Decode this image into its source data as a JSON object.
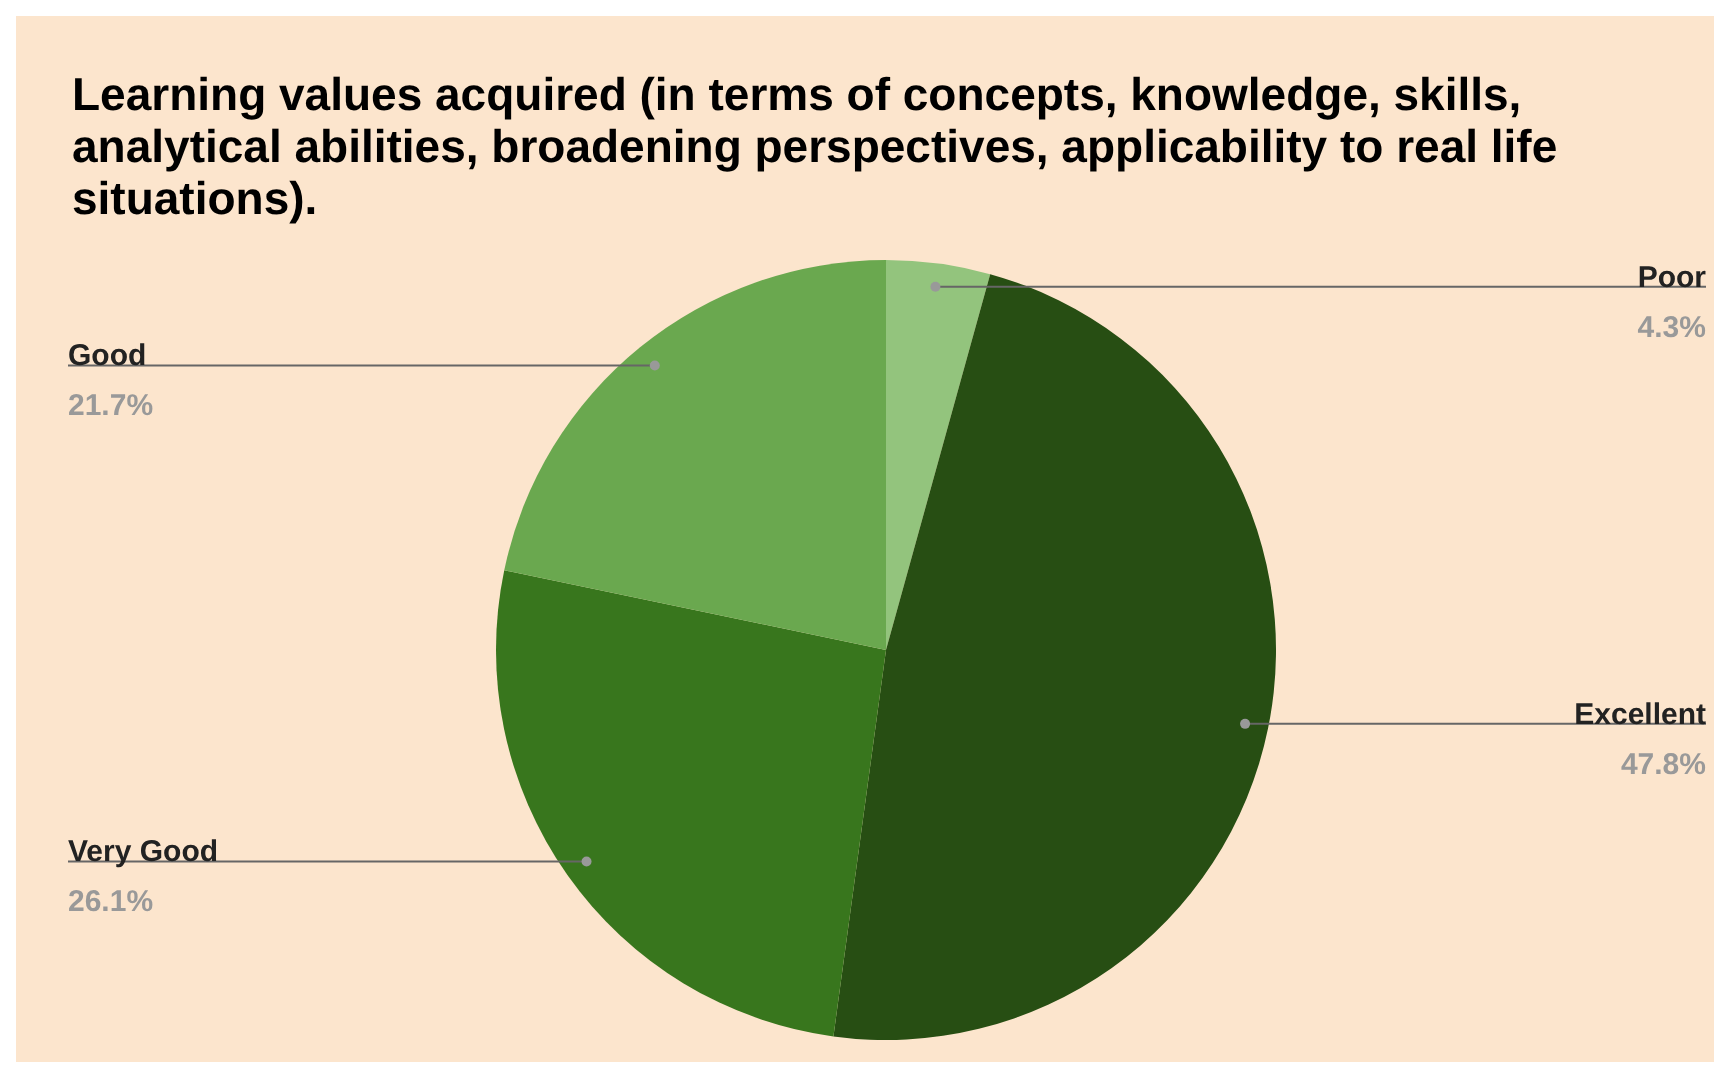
{
  "chart_data": {
    "type": "pie",
    "title": "Learning values acquired (in terms of concepts, knowledge, skills, analytical abilities, broadening perspectives, applicability to real life situations).",
    "categories": [
      "Poor",
      "Excellent",
      "Very Good",
      "Good"
    ],
    "values": [
      4.3,
      47.8,
      26.1,
      21.7
    ],
    "value_labels": [
      "4.3%",
      "47.8%",
      "26.1%",
      "21.7%"
    ],
    "colors": [
      "#93c47d",
      "#274e13",
      "#38761d",
      "#6aa84f"
    ]
  }
}
